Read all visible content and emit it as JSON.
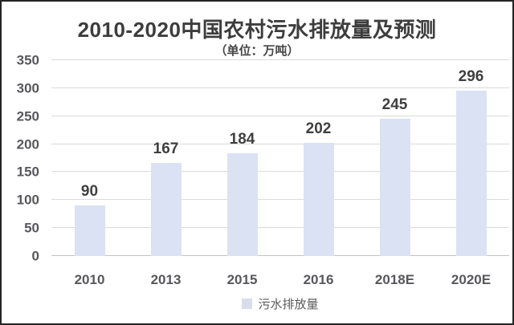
{
  "chart_data": {
    "type": "bar",
    "title": "2010-2020中国农村污水排放量及预测",
    "subtitle": "（单位：万吨）",
    "unit": "万吨",
    "categories": [
      "2010",
      "2013",
      "2015",
      "2016",
      "2018E",
      "2020E"
    ],
    "values": [
      90,
      167,
      184,
      202,
      245,
      296
    ],
    "series_name": "污水排放量",
    "xlabel": "",
    "ylabel": "",
    "ylim": [
      0,
      350
    ],
    "yticks": [
      0,
      50,
      100,
      150,
      200,
      250,
      300,
      350
    ],
    "grid": true,
    "legend_position": "bottom",
    "colors": {
      "bar_fill": "#dae2f3",
      "legend_swatch": "#d8dde9",
      "gridline": "#dadada",
      "axis_line": "#c2c2c2",
      "title_text": "#3d3d3d",
      "value_label_text": "#3f3f3f",
      "axis_label_text": "#57575c",
      "frame_border": "#242424",
      "background": "#ffffff"
    }
  }
}
